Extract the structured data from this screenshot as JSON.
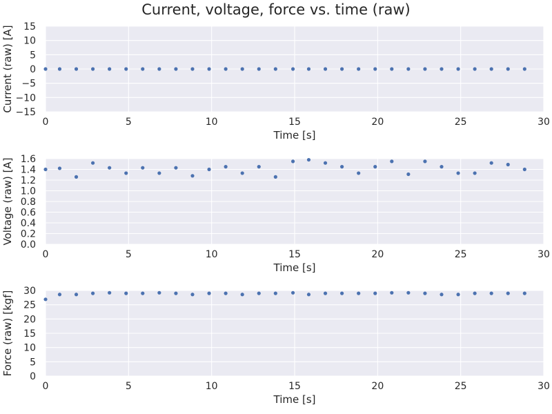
{
  "figure": {
    "title": "Current, voltage, force vs. time (raw)"
  },
  "chart_data": [
    {
      "type": "scatter",
      "title": "",
      "xlabel": "Time [s]",
      "ylabel": "Current (raw) [A]",
      "xlim": [
        0,
        30
      ],
      "ylim": [
        -15,
        15
      ],
      "xticks": [
        0,
        5,
        10,
        15,
        20,
        25,
        30
      ],
      "yticks": [
        -15,
        -10,
        -5,
        0,
        5,
        10,
        15
      ],
      "ytick_labels": [
        "−15",
        "−10",
        "−5",
        "0",
        "5",
        "10",
        "15"
      ],
      "grid": true,
      "color": "#4c72b0",
      "x": [
        0,
        0.85,
        1.85,
        2.85,
        3.85,
        4.85,
        5.85,
        6.85,
        7.85,
        8.85,
        9.85,
        10.85,
        11.85,
        12.85,
        13.85,
        14.9,
        15.85,
        16.85,
        17.85,
        18.85,
        19.85,
        20.85,
        21.85,
        22.85,
        23.85,
        24.85,
        25.85,
        26.85,
        27.85,
        28.85
      ],
      "y": [
        0,
        0,
        0,
        0,
        0,
        0,
        0,
        0,
        0,
        0,
        0,
        0,
        0,
        0,
        0,
        0,
        0,
        0,
        0,
        0,
        0,
        0,
        0,
        0,
        0,
        0,
        0,
        0,
        0,
        0
      ]
    },
    {
      "type": "scatter",
      "title": "",
      "xlabel": "Time [s]",
      "ylabel": "Voltage (raw) [A]",
      "xlim": [
        0,
        30
      ],
      "ylim": [
        0,
        1.6
      ],
      "xticks": [
        0,
        5,
        10,
        15,
        20,
        25,
        30
      ],
      "yticks": [
        0,
        0.2,
        0.4,
        0.6,
        0.8,
        1.0,
        1.2,
        1.4,
        1.6
      ],
      "ytick_labels": [
        "0.0",
        "0.2",
        "0.4",
        "0.6",
        "0.8",
        "1.0",
        "1.2",
        "1.4",
        "1.6"
      ],
      "grid": true,
      "color": "#4c72b0",
      "x": [
        0,
        0.85,
        1.85,
        2.85,
        3.85,
        4.85,
        5.85,
        6.85,
        7.85,
        8.85,
        9.85,
        10.85,
        11.85,
        12.85,
        13.85,
        14.9,
        15.85,
        16.85,
        17.85,
        18.85,
        19.85,
        20.85,
        21.85,
        22.85,
        23.85,
        24.85,
        25.85,
        26.85,
        27.85,
        28.85
      ],
      "y": [
        1.4,
        1.42,
        1.26,
        1.52,
        1.43,
        1.33,
        1.43,
        1.33,
        1.43,
        1.28,
        1.4,
        1.45,
        1.33,
        1.45,
        1.26,
        1.55,
        1.58,
        1.52,
        1.45,
        1.33,
        1.45,
        1.55,
        1.31,
        1.55,
        1.45,
        1.33,
        1.33,
        1.52,
        1.49,
        1.4
      ]
    },
    {
      "type": "scatter",
      "title": "",
      "xlabel": "Time [s]",
      "ylabel": "Force (raw) [kgf]",
      "xlim": [
        0,
        30
      ],
      "ylim": [
        0,
        30
      ],
      "xticks": [
        0,
        5,
        10,
        15,
        20,
        25,
        30
      ],
      "yticks": [
        0,
        5,
        10,
        15,
        20,
        25,
        30
      ],
      "ytick_labels": [
        "0",
        "5",
        "10",
        "15",
        "20",
        "25",
        "30"
      ],
      "grid": true,
      "color": "#4c72b0",
      "x": [
        0,
        0.85,
        1.85,
        2.85,
        3.85,
        4.85,
        5.85,
        6.85,
        7.85,
        8.85,
        9.85,
        10.85,
        11.85,
        12.85,
        13.85,
        14.9,
        15.85,
        16.85,
        17.85,
        18.85,
        19.85,
        20.85,
        21.85,
        22.85,
        23.85,
        24.85,
        25.85,
        26.85,
        27.85,
        28.85
      ],
      "y": [
        26.9,
        28.6,
        28.6,
        29.0,
        29.2,
        29.0,
        29.0,
        29.2,
        29.0,
        28.6,
        29.0,
        29.0,
        28.6,
        29.0,
        29.0,
        29.2,
        28.6,
        29.0,
        29.0,
        29.0,
        29.0,
        29.2,
        29.2,
        29.0,
        28.6,
        28.6,
        29.0,
        29.0,
        29.0,
        29.0
      ]
    }
  ]
}
